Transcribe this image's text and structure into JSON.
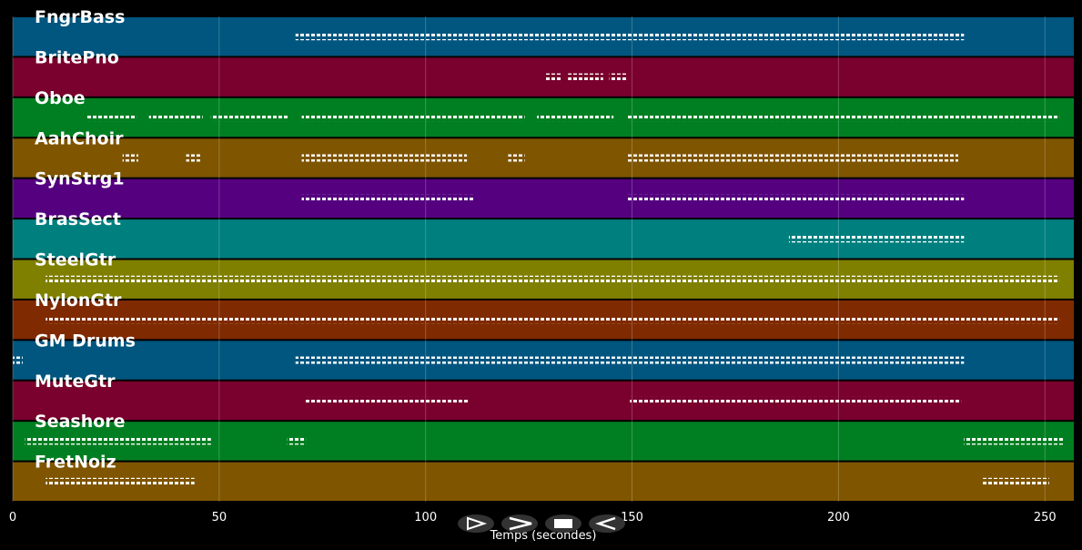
{
  "chart_data": {
    "type": "pianoroll",
    "xlabel": "Temps (secondes)",
    "xlim": [
      0,
      257
    ],
    "xticks": [
      0,
      50,
      100,
      150,
      200,
      250
    ],
    "grid": true,
    "tracks": [
      {
        "name": "FngrBass",
        "color": "#00567f",
        "segments": [
          [
            68.5,
            230.4
          ]
        ]
      },
      {
        "name": "BritePno",
        "color": "#7a002d",
        "segments": [
          [
            129,
            133
          ],
          [
            134.5,
            143
          ],
          [
            144.5,
            149
          ]
        ]
      },
      {
        "name": "Oboe",
        "color": "#007f22",
        "segments": [
          [
            17.8,
            30
          ],
          [
            33,
            46
          ],
          [
            48,
            67
          ],
          [
            70,
            124
          ],
          [
            127,
            145.5
          ],
          [
            149,
            253.5
          ]
        ]
      },
      {
        "name": "AahChoir",
        "color": "#7f5500",
        "segments": [
          [
            26.6,
            30.4
          ],
          [
            42,
            45.4
          ],
          [
            70,
            110
          ],
          [
            120,
            124
          ],
          [
            149,
            229
          ]
        ]
      },
      {
        "name": "SynStrg1",
        "color": "#55007f",
        "segments": [
          [
            70,
            111.5
          ],
          [
            149,
            230.4
          ]
        ]
      },
      {
        "name": "BrasSect",
        "color": "#007f7f",
        "segments": [
          [
            188,
            230.4
          ]
        ]
      },
      {
        "name": "SteelGtr",
        "color": "#7f7f00",
        "segments": [
          [
            8,
            253.5
          ]
        ]
      },
      {
        "name": "NylonGtr",
        "color": "#7f2a00",
        "segments": [
          [
            8,
            253.5
          ]
        ]
      },
      {
        "name": "GM Drums",
        "color": "#00567f",
        "segments": [
          [
            0,
            2.4
          ],
          [
            68.5,
            230.4
          ]
        ]
      },
      {
        "name": "MuteGtr",
        "color": "#7a002d",
        "segments": [
          [
            70.7,
            110.4
          ],
          [
            149.5,
            229.7
          ]
        ]
      },
      {
        "name": "Seashore",
        "color": "#007f22",
        "segments": [
          [
            3,
            48
          ],
          [
            66.5,
            71
          ],
          [
            230.4,
            254.6
          ]
        ]
      },
      {
        "name": "FretNoiz",
        "color": "#7f5500",
        "segments": [
          [
            8,
            44
          ],
          [
            235,
            251
          ]
        ]
      }
    ]
  }
}
